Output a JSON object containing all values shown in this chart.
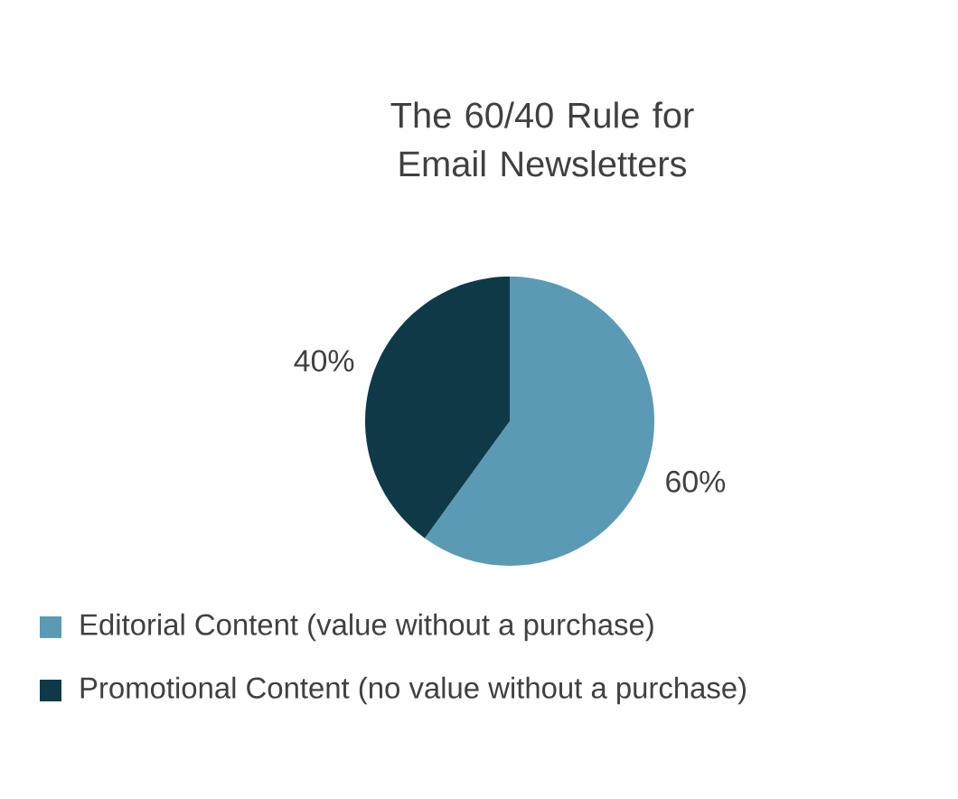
{
  "chart_data": {
    "type": "pie",
    "title": "The 60/40 Rule for Email Newsletters",
    "categories": [
      "Editorial Content (value without a purchase)",
      "Promotional Content (no value without a purchase)"
    ],
    "values": [
      60,
      40
    ],
    "colors": [
      "#5b9ab4",
      "#0e3a48"
    ],
    "value_labels": [
      "60%",
      "40%"
    ],
    "legend": "bottom"
  }
}
